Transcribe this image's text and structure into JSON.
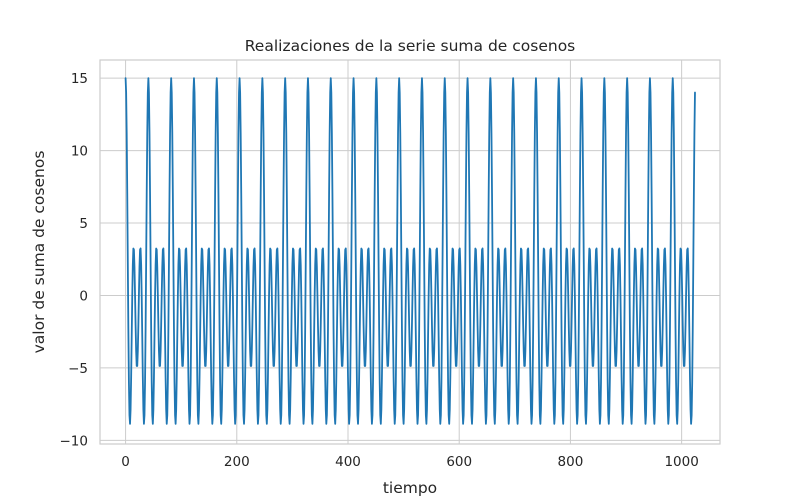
{
  "chart_data": {
    "type": "line",
    "title": "Realizaciones de la serie suma de cosenos",
    "xlabel": "tiempo",
    "ylabel": "valor de suma de cosenos",
    "xlim": [
      -46,
      1069
    ],
    "ylim": [
      -10.25,
      16.25
    ],
    "xticks": [
      0,
      200,
      400,
      600,
      800,
      1000
    ],
    "yticks": [
      -10,
      -5,
      0,
      5,
      10,
      15
    ],
    "xtick_labels": [
      "0",
      "200",
      "400",
      "600",
      "800",
      "1000"
    ],
    "ytick_labels": [
      "−10",
      "−5",
      "0",
      "5",
      "10",
      "15"
    ],
    "grid": true,
    "legend": "none",
    "series": [
      {
        "color": "#1f77b4",
        "function": "3*cos(2*pi*t/41) + 5*cos(2*pi*t/20.5) + 7*cos(2*pi*t/13.6667)",
        "sample_every": 1,
        "x_range": [
          0,
          1024
        ],
        "approx_values": [
          {
            "x": 0,
            "y": 15
          },
          {
            "x": 25,
            "y": -9
          },
          {
            "x": 45,
            "y": 3.7
          },
          {
            "x": 82,
            "y": 2.6
          },
          {
            "x": 123,
            "y": 2.6
          },
          {
            "x": 160,
            "y": 3.7
          },
          {
            "x": 180,
            "y": -9
          },
          {
            "x": 205,
            "y": 15
          },
          {
            "x": 410,
            "y": 15
          },
          {
            "x": 615,
            "y": 15
          },
          {
            "x": 820,
            "y": 15
          },
          {
            "x": 1024,
            "y": 15
          }
        ]
      }
    ]
  }
}
